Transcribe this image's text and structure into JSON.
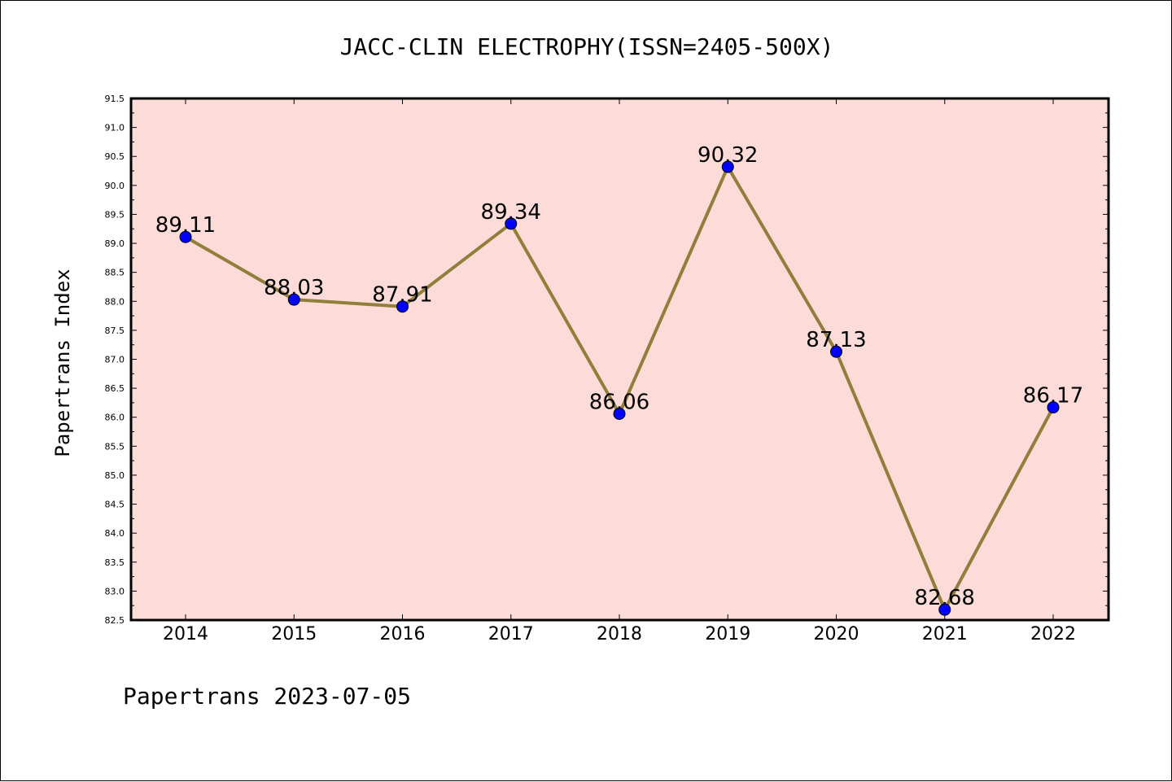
{
  "chart_data": {
    "type": "line",
    "title": "JACC-CLIN ELECTROPHY(ISSN=2405-500X)",
    "ylabel": "Papertrans Index",
    "xlabel": "",
    "categories": [
      "2014",
      "2015",
      "2016",
      "2017",
      "2018",
      "2019",
      "2020",
      "2021",
      "2022"
    ],
    "values": [
      89.11,
      88.03,
      87.91,
      89.34,
      86.06,
      90.32,
      87.13,
      82.68,
      86.17
    ],
    "data_labels": [
      "89.11",
      "88.03",
      "87.91",
      "89.34",
      "86.06",
      "90.32",
      "87.13",
      "82.68",
      "86.17"
    ],
    "ylim": [
      82.5,
      91.5
    ],
    "ytick_step": 0.5,
    "grid": false,
    "colors": {
      "plot_background": "#fddbd8",
      "line": "#8f7f3a",
      "marker": "#0000ff"
    }
  },
  "footer": "Papertrans 2023-07-05"
}
